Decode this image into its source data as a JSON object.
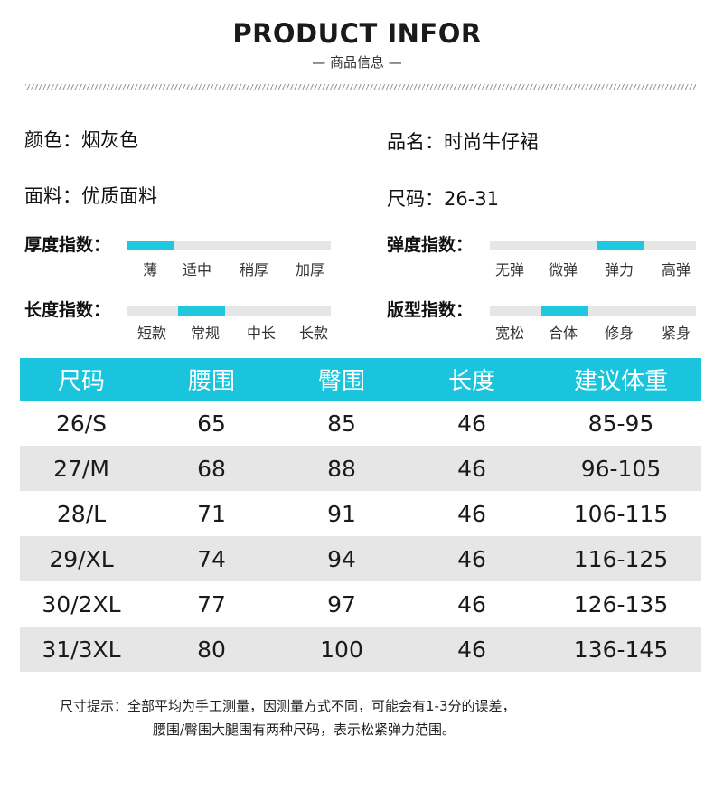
{
  "header": {
    "title": "PRODUCT INFOR",
    "subtitle": "— 商品信息 —"
  },
  "info": {
    "color": "颜色：烟灰色",
    "name": "品名：时尚牛仔裙",
    "fabric": "面料：优质面料",
    "size": "尺码：26-31"
  },
  "indices": {
    "thickness": {
      "label": "厚度指数：",
      "levels": [
        "薄",
        "适中",
        "稍厚",
        "加厚"
      ],
      "selected": "薄"
    },
    "elasticity": {
      "label": "弹度指数：",
      "levels": [
        "无弹",
        "微弹",
        "弹力",
        "高弹"
      ],
      "selected": "弹力"
    },
    "length": {
      "label": "长度指数：",
      "levels": [
        "短款",
        "常规",
        "中长",
        "长款"
      ],
      "selected": "常规"
    },
    "fit": {
      "label": "版型指数：",
      "levels": [
        "宽松",
        "合体",
        "修身",
        "紧身"
      ],
      "selected": "合体"
    }
  },
  "accent_color": "#19c4dc",
  "size_table": {
    "headers": [
      "尺码",
      "腰围",
      "臀围",
      "长度",
      "建议体重"
    ],
    "rows": [
      [
        "26/S",
        "65",
        "85",
        "46",
        "85-95"
      ],
      [
        "27/M",
        "68",
        "88",
        "46",
        "96-105"
      ],
      [
        "28/L",
        "71",
        "91",
        "46",
        "106-115"
      ],
      [
        "29/XL",
        "74",
        "94",
        "46",
        "116-125"
      ],
      [
        "30/2XL",
        "77",
        "97",
        "46",
        "126-135"
      ],
      [
        "31/3XL",
        "80",
        "100",
        "46",
        "136-145"
      ]
    ]
  },
  "notes": {
    "line1": "尺寸提示：全部平均为手工测量，因测量方式不同，可能会有1-3分的误差，",
    "line2": "腰围/臀围大腿围有两种尺码，表示松紧弹力范围。"
  }
}
